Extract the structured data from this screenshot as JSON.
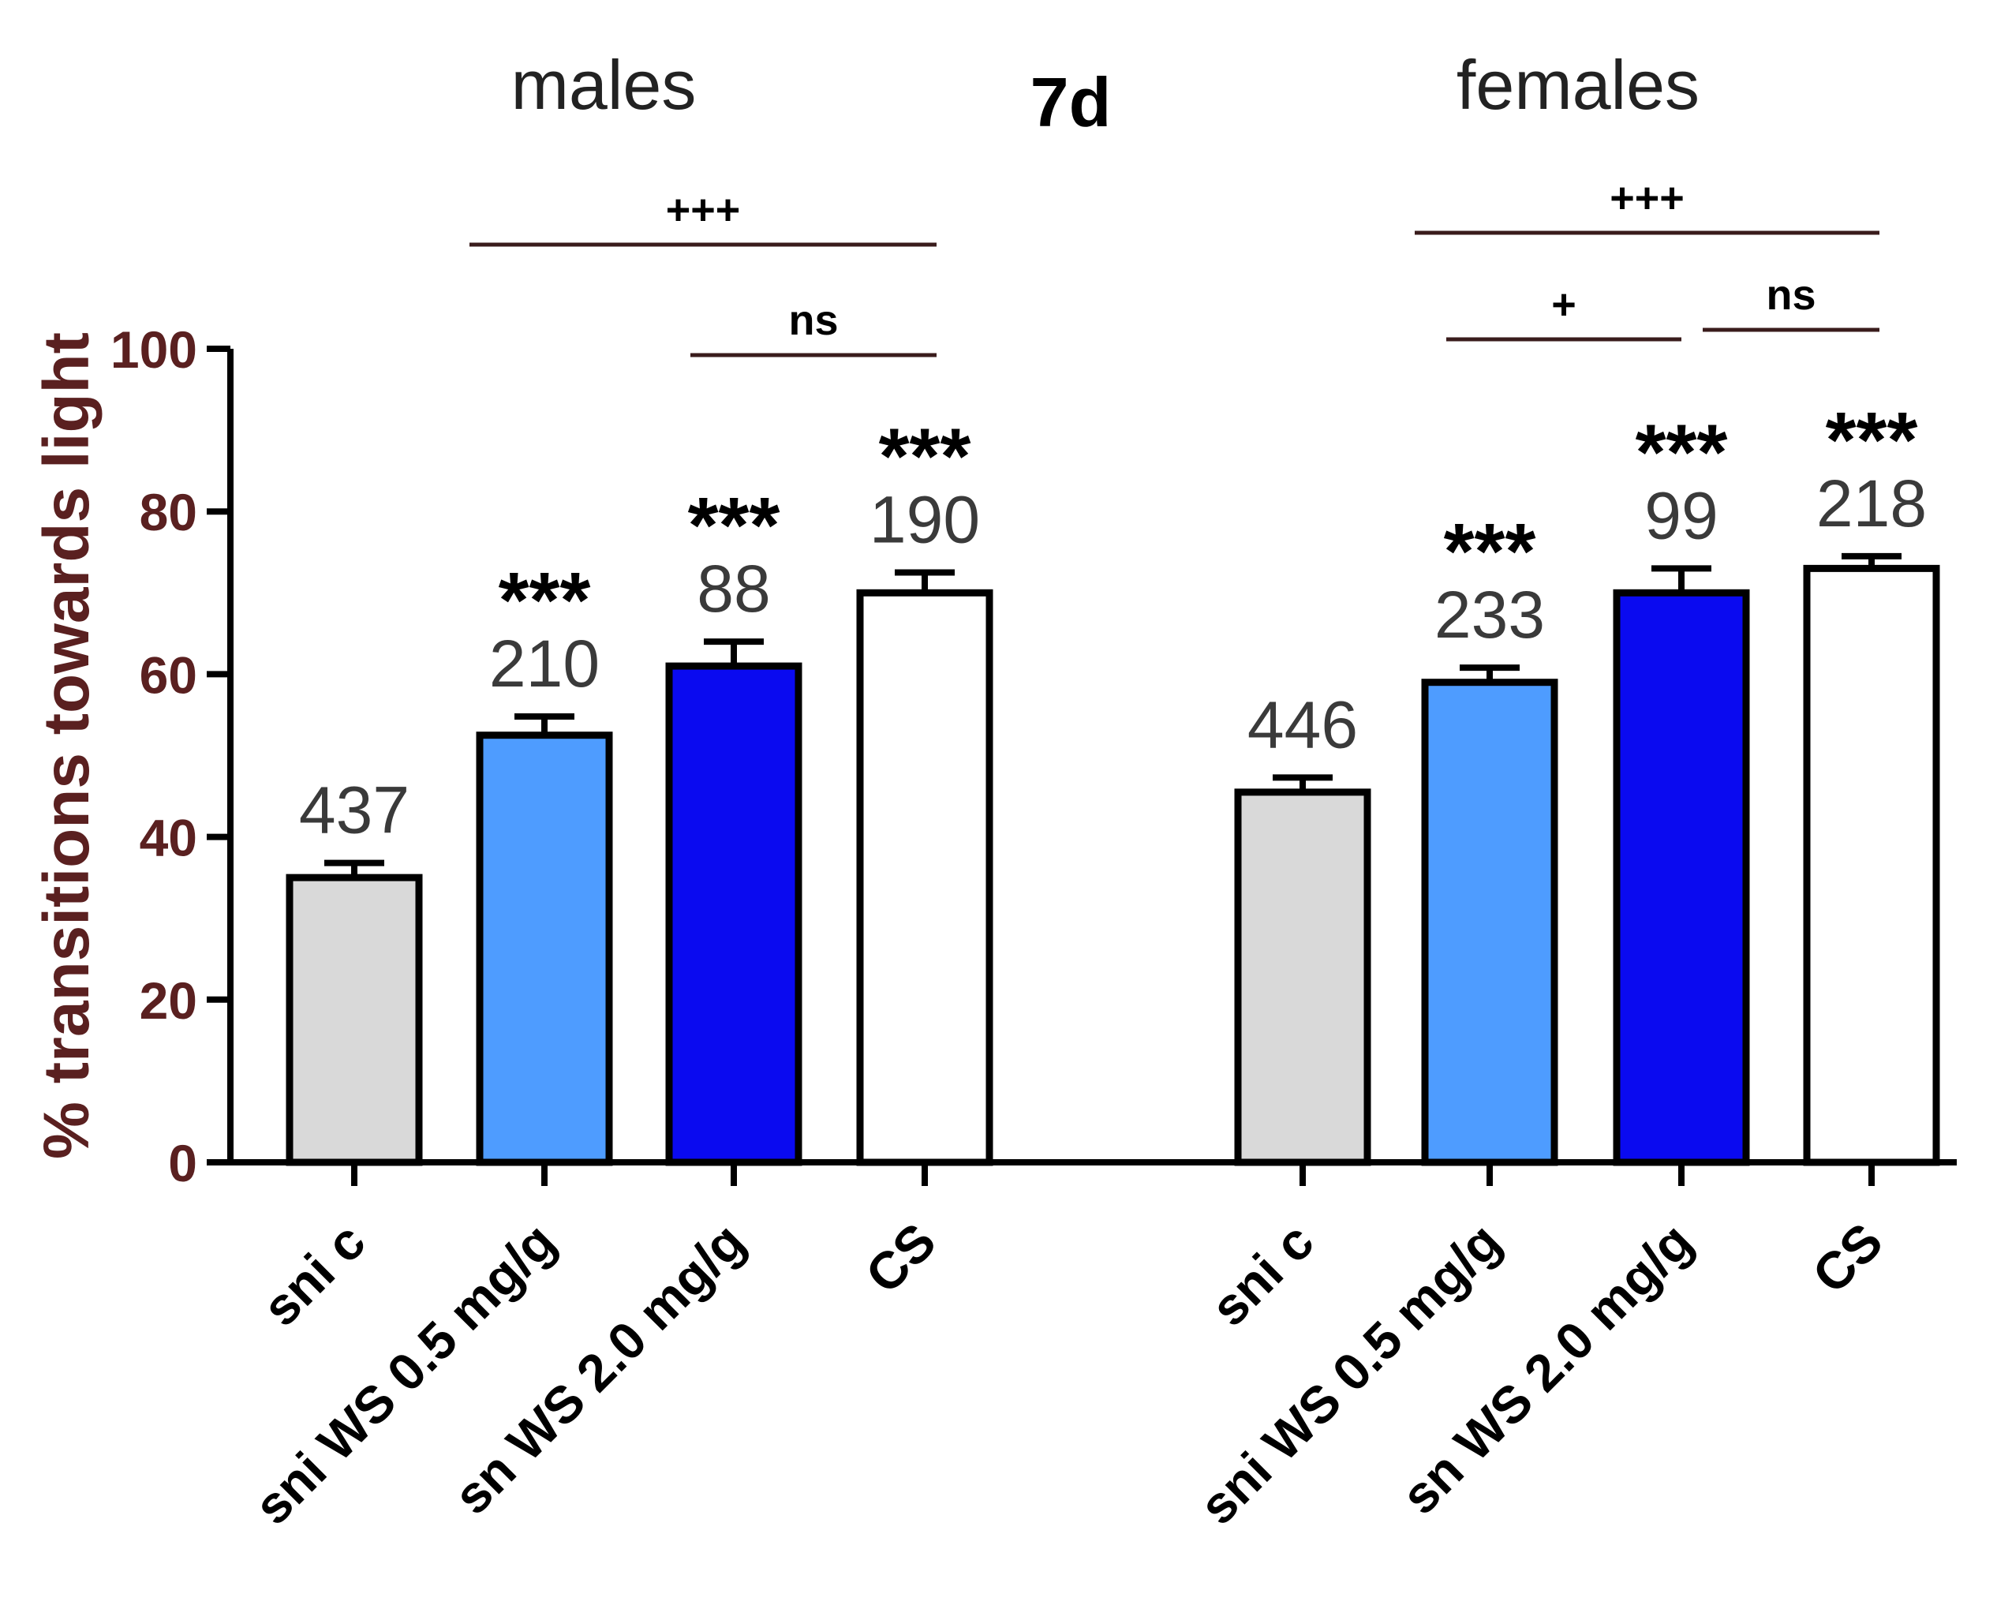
{
  "chart_data": {
    "type": "bar",
    "title": "7d",
    "ylabel": "% transitions towards light",
    "ylim": [
      0,
      100
    ],
    "yticks": [
      0,
      20,
      40,
      60,
      80,
      100
    ],
    "colors": {
      "axis": "#000000",
      "text_dark": "#000000",
      "text_gray": "#3a3a3a",
      "bracket": "#3a1c1c",
      "sni_c": "#d9d9d9",
      "ws_low": "#4e9cff",
      "ws_high": "#0a0af0",
      "cs": "#ffffff"
    },
    "groups": [
      {
        "name": "males",
        "bars": [
          {
            "category": "sni c",
            "value": 35,
            "error": 1.8,
            "n": "437",
            "sig": "",
            "color_key": "sni_c"
          },
          {
            "category": "sni WS 0.5 mg/g",
            "value": 52.5,
            "error": 2.3,
            "n": "210",
            "sig": "***",
            "color_key": "ws_low"
          },
          {
            "category": "sn WS 2.0 mg/g",
            "value": 61,
            "error": 3.0,
            "n": "88",
            "sig": "***",
            "color_key": "ws_high"
          },
          {
            "category": "CS",
            "value": 70,
            "error": 2.5,
            "n": "190",
            "sig": "***",
            "color_key": "cs"
          }
        ],
        "comparisons": [
          {
            "from": 1,
            "to": 3,
            "label": "+++"
          },
          {
            "from": 2,
            "to": 3,
            "label": "ns"
          }
        ]
      },
      {
        "name": "females",
        "bars": [
          {
            "category": "sni c",
            "value": 45.5,
            "error": 1.8,
            "n": "446",
            "sig": "",
            "color_key": "sni_c"
          },
          {
            "category": "sni WS 0.5 mg/g",
            "value": 59,
            "error": 1.8,
            "n": "233",
            "sig": "***",
            "color_key": "ws_low"
          },
          {
            "category": "sn WS 2.0 mg/g",
            "value": 70,
            "error": 3.0,
            "n": "99",
            "sig": "***",
            "color_key": "ws_high"
          },
          {
            "category": "CS",
            "value": 73,
            "error": 1.5,
            "n": "218",
            "sig": "***",
            "color_key": "cs"
          }
        ],
        "comparisons": [
          {
            "from": 1,
            "to": 3,
            "label": "+++"
          },
          {
            "from": 1,
            "to": 2,
            "label": "+"
          },
          {
            "from": 2,
            "to": 3,
            "label": "ns"
          }
        ]
      }
    ]
  }
}
